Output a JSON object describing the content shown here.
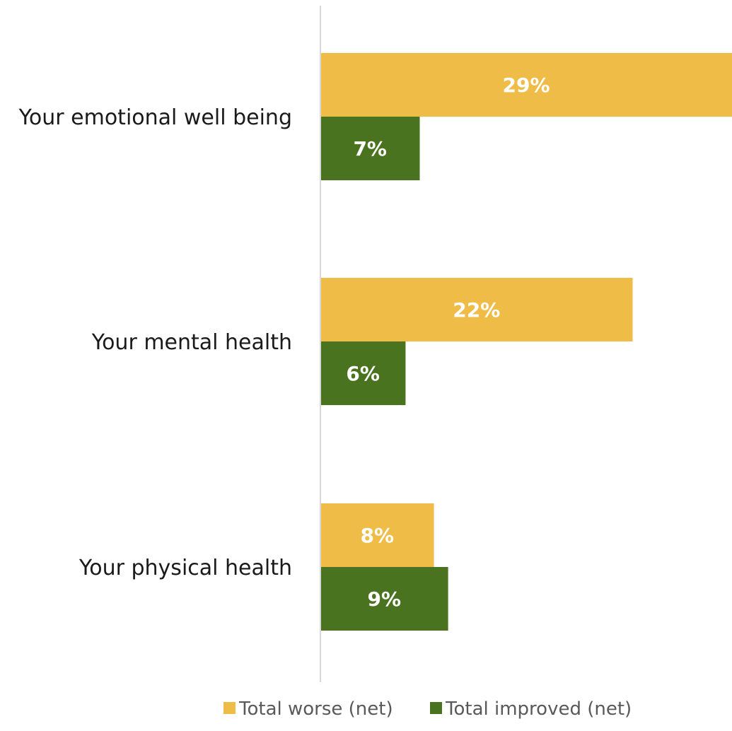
{
  "chart_data": {
    "type": "bar",
    "orientation": "horizontal",
    "categories": [
      "Your emotional well being",
      "Your mental health",
      "Your physical health"
    ],
    "series": [
      {
        "name": "Total worse (net)",
        "values": [
          29,
          22,
          8
        ],
        "labels": [
          "29%",
          "22%",
          "8%"
        ],
        "color": "#F0BC48"
      },
      {
        "name": "Total improved (net)",
        "values": [
          7,
          6,
          9
        ],
        "labels": [
          "7%",
          "6%",
          "9%"
        ],
        "color": "#4A7320"
      }
    ],
    "title": "",
    "xlabel": "",
    "ylabel": "",
    "xlim": [
      0,
      29
    ],
    "grid": false,
    "legend_position": "bottom"
  }
}
